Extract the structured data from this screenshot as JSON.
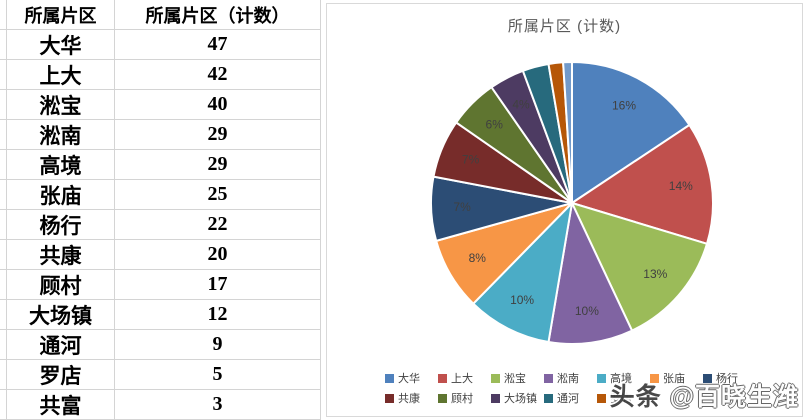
{
  "table": {
    "headers": [
      "所属片区",
      "所属片区（计数）"
    ],
    "rows": [
      {
        "district": "大华",
        "count": "47"
      },
      {
        "district": "上大",
        "count": "42"
      },
      {
        "district": "淞宝",
        "count": "40"
      },
      {
        "district": "淞南",
        "count": "29"
      },
      {
        "district": "高境",
        "count": "29"
      },
      {
        "district": "张庙",
        "count": "25"
      },
      {
        "district": "杨行",
        "count": "22"
      },
      {
        "district": "共康",
        "count": "20"
      },
      {
        "district": "顾村",
        "count": "17"
      },
      {
        "district": "大场镇",
        "count": "12"
      },
      {
        "district": "通河",
        "count": "9"
      },
      {
        "district": "罗店",
        "count": "5"
      },
      {
        "district": "共富",
        "count": "3"
      }
    ]
  },
  "chart_data": {
    "type": "pie",
    "title": "所属片区 (计数)",
    "total": 300,
    "start_angle_deg": 0,
    "direction": "clockwise",
    "legend_position": "bottom",
    "slices": [
      {
        "label": "大华",
        "value": 47,
        "pct_label": "16%",
        "color": "#4F81BD"
      },
      {
        "label": "上大",
        "value": 42,
        "pct_label": "14%",
        "color": "#C0504D"
      },
      {
        "label": "淞宝",
        "value": 40,
        "pct_label": "13%",
        "color": "#9BBB59"
      },
      {
        "label": "淞南",
        "value": 29,
        "pct_label": "10%",
        "color": "#8064A2"
      },
      {
        "label": "高境",
        "value": 29,
        "pct_label": "10%",
        "color": "#4BACC6"
      },
      {
        "label": "张庙",
        "value": 25,
        "pct_label": "8%",
        "color": "#F79646"
      },
      {
        "label": "杨行",
        "value": 22,
        "pct_label": "7%",
        "color": "#2C4D75"
      },
      {
        "label": "共康",
        "value": 20,
        "pct_label": "7%",
        "color": "#772C2A"
      },
      {
        "label": "顾村",
        "value": 17,
        "pct_label": "6%",
        "color": "#5F7530"
      },
      {
        "label": "大场镇",
        "value": 12,
        "pct_label": "4%",
        "color": "#4D3B62"
      },
      {
        "label": "通河",
        "value": 9,
        "pct_label": "",
        "color": "#276A7D"
      },
      {
        "label": "罗店",
        "value": 5,
        "pct_label": "",
        "color": "#B65708"
      },
      {
        "label": "共富",
        "value": 3,
        "pct_label": "",
        "color": "#729ACA"
      }
    ],
    "legend_rows": [
      [
        "大华",
        "上大",
        "淞宝",
        "淞南",
        "高境",
        "张庙",
        "杨行"
      ],
      [
        "共康",
        "顾村",
        "大场镇",
        "通河",
        "罗店"
      ]
    ]
  },
  "watermark": {
    "logo": "头条",
    "handle": "@百晓生潍"
  },
  "colors": {
    "grid": "#d4d4d4",
    "panel_border": "#d9d9d9",
    "title_text": "#595959",
    "pie_label_text": "#404040",
    "legend_text": "#404040"
  }
}
